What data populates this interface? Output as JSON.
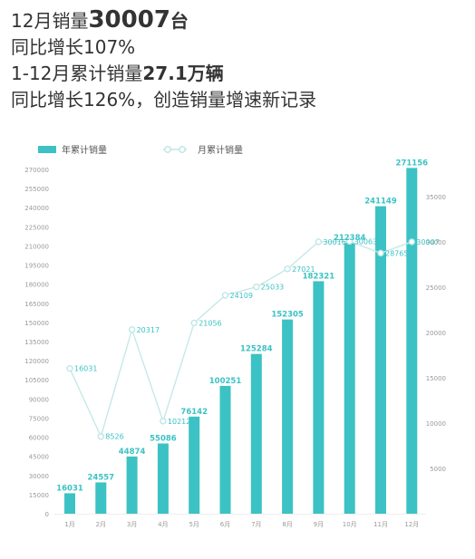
{
  "headline": {
    "line1_pre": "12月销量",
    "line1_num": "30007",
    "line1_post": "台",
    "line2": "同比增长107%",
    "line3_pre": "1-12月累计销量",
    "line3_num": "27.1万辆",
    "line4": "同比增长126%，创造销量增速新记录"
  },
  "colors": {
    "bar": "#3cc2c4",
    "line": "#c6e8e8",
    "line_marker": "#bfe6e6",
    "text_dark": "#333333",
    "axis_text": "#999999",
    "grid": "#eeeeee"
  },
  "chart_data": {
    "type": "bar",
    "categories": [
      "1月",
      "2月",
      "3月",
      "4月",
      "5月",
      "6月",
      "7月",
      "8月",
      "9月",
      "10月",
      "11月",
      "12月"
    ],
    "series": [
      {
        "name": "年累计销量",
        "type": "bar",
        "axis": "left",
        "values": [
          16031,
          24557,
          44874,
          55086,
          76142,
          100251,
          125284,
          152305,
          182321,
          212384,
          241149,
          271156
        ]
      },
      {
        "name": "月累计销量",
        "type": "line",
        "axis": "right",
        "values": [
          16031,
          8526,
          20317,
          10212,
          21056,
          24109,
          25033,
          27021,
          30016,
          30063,
          28765,
          30007
        ],
        "labels": [
          "16031",
          "8526",
          "20317",
          "10212",
          "21056",
          "24109",
          "25033",
          "27021",
          "30016",
          "30063",
          "28765",
          "30007"
        ]
      }
    ],
    "y_left": {
      "lim": [
        0,
        270000
      ],
      "ticks": [
        "0",
        "15000",
        "30000",
        "45000",
        "60000",
        "75000",
        "90000",
        "105000",
        "120000",
        "135000",
        "150000",
        "165000",
        "180000",
        "195000",
        "210000",
        "225000",
        "240000",
        "255000",
        "270000"
      ]
    },
    "y_right": {
      "lim": [
        0,
        38000
      ],
      "ticks": [
        "5000",
        "10000",
        "15000",
        "20000",
        "25000",
        "30000",
        "35000"
      ]
    },
    "legend_position": "top-left",
    "grid": false
  }
}
